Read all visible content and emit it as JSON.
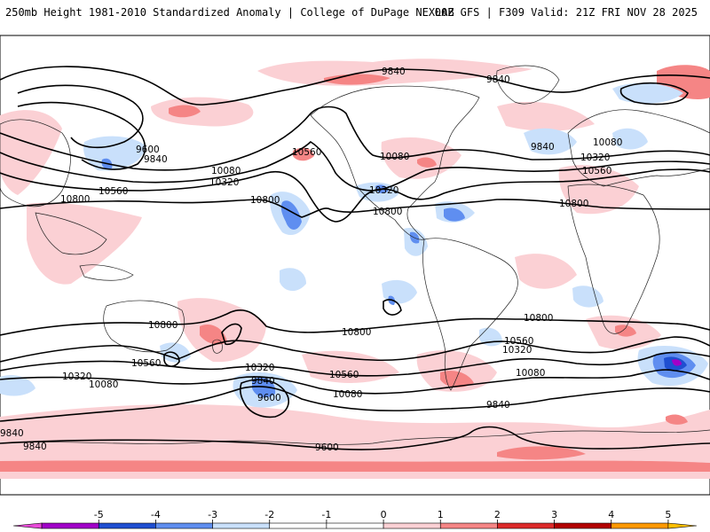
{
  "header": {
    "left": "250mb Height 1981-2010 Standardized Anomaly | College of DuPage NEXLAB",
    "right": "00Z GFS | F309 Valid: 21Z FRI NOV 28 2025"
  },
  "colors": {
    "contour": "#000000",
    "coast": "#222222",
    "pos1": "#fbd0d4",
    "pos2": "#f58585",
    "pos3": "#dc2a2a",
    "neg1": "#c9e0fb",
    "neg2": "#5f8ef0",
    "neg3": "#1f4fd1",
    "neg4": "#a100c8"
  },
  "contour_labels": {
    "l9840_a": "9840",
    "l9840_b": "9840",
    "l9840_c": "9840",
    "l9840_d": "9840",
    "l9840_e": "9840",
    "l9840_f": "9840",
    "l9840_g": "9840",
    "l9840_h": "9840",
    "l9600_a": "9600",
    "l9600_b": "9600",
    "l9600_c": "9600",
    "l10080_a": "10080",
    "l10080_b": "10080",
    "l10080_c": "10080",
    "l10080_d": "10080",
    "l10080_e": "10080",
    "l10080_f": "10080",
    "l10320_a": "10320",
    "l10320_b": "10320",
    "l10320_c": "10320",
    "l10320_d": "10320",
    "l10320_e": "10320",
    "l10320_f": "10320",
    "l10560_a": "10560",
    "l10560_b": "10560",
    "l10560_c": "10560",
    "l10560_d": "10560",
    "l10560_e": "10560",
    "l10560_f": "10560",
    "l10800_a": "10800",
    "l10800_b": "10800",
    "l10800_c": "10800",
    "l10800_d": "10800",
    "l10800_e": "10800",
    "l10800_f": "10800",
    "l10800_g": "10800"
  },
  "colorbar": {
    "ticks": [
      "-5",
      "-4",
      "-3",
      "-2",
      "-1",
      "0",
      "1",
      "2",
      "3",
      "4",
      "5"
    ],
    "colors": [
      "#e94bd9",
      "#a100c8",
      "#1f4fd1",
      "#5f8ef0",
      "#c9e0fb",
      "#ffffff",
      "#ffffff",
      "#fbd0d4",
      "#f58585",
      "#dc2a2a",
      "#b20000",
      "#ff9900",
      "#ffbf00"
    ]
  }
}
